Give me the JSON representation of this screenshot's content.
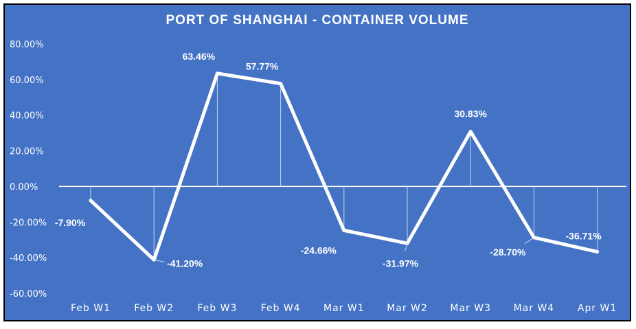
{
  "chart_data": {
    "type": "line",
    "title": "PORT OF SHANGHAI - CONTAINER VOLUME",
    "categories": [
      "Feb W1",
      "Feb W2",
      "Feb W3",
      "Feb W4",
      "Mar W1",
      "Mar W2",
      "Mar W3",
      "Mar W4",
      "Apr W1"
    ],
    "series": [
      {
        "values": [
          -7.9,
          -41.2,
          63.46,
          57.77,
          -24.66,
          -31.97,
          30.83,
          -28.7,
          -36.71
        ],
        "labels": [
          "-7.90%",
          "-41.20%",
          "63.46%",
          "57.77%",
          "-24.66%",
          "-31.97%",
          "30.83%",
          "-28.70%",
          "-36.71%"
        ]
      }
    ],
    "y_ticks": [
      "80.00%",
      "60.00%",
      "40.00%",
      "20.00%",
      "0.00%",
      "-20.00%",
      "-40.00%",
      "-60.00%"
    ],
    "ylim": [
      -60,
      80
    ],
    "y_unit": "percent",
    "grid": false,
    "drop_lines": true,
    "colors": {
      "background": "#4472c4",
      "line": "#ffffff",
      "text": "#ffffff"
    }
  }
}
